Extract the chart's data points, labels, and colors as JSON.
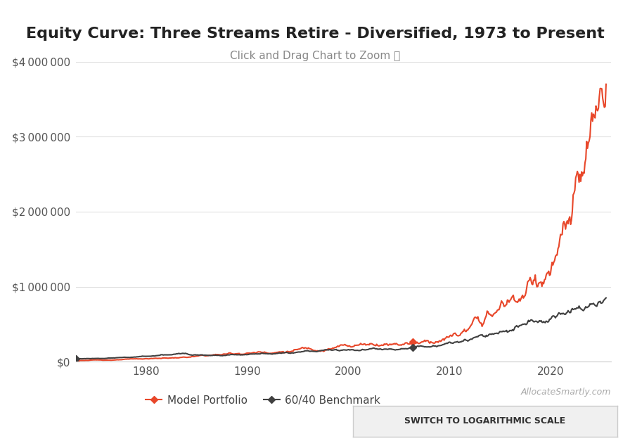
{
  "title": "Equity Curve: Three Streams Retire - Diversified, 1973 to Present",
  "subtitle": "Click and Drag Chart to Zoom ⌕",
  "title_fontsize": 16,
  "subtitle_fontsize": 11,
  "subtitle_color": "#888888",
  "background_color": "#ffffff",
  "plot_bg_color": "#ffffff",
  "grid_color": "#e0e0e0",
  "xlabel": "",
  "ylabel": "",
  "ylim": [
    0,
    4000000
  ],
  "xlim": [
    1973,
    2026
  ],
  "yticks": [
    0,
    1000000,
    2000000,
    3000000,
    4000000
  ],
  "ytick_labels": [
    "$0",
    "$1 000 000",
    "$2 000 000",
    "$3 000 000",
    "$4 000 000"
  ],
  "xticks": [
    1980,
    1990,
    2000,
    2010,
    2020
  ],
  "model_color": "#e8472a",
  "benchmark_color": "#404040",
  "legend_model": "Model Portfolio",
  "legend_benchmark": "60/40 Benchmark",
  "watermark": "AllocateSmartly.com",
  "button_text": "SWITCH TO LOGARITHMIC SCALE",
  "button_bg": "#f0f0f0",
  "button_border": "#cccccc"
}
